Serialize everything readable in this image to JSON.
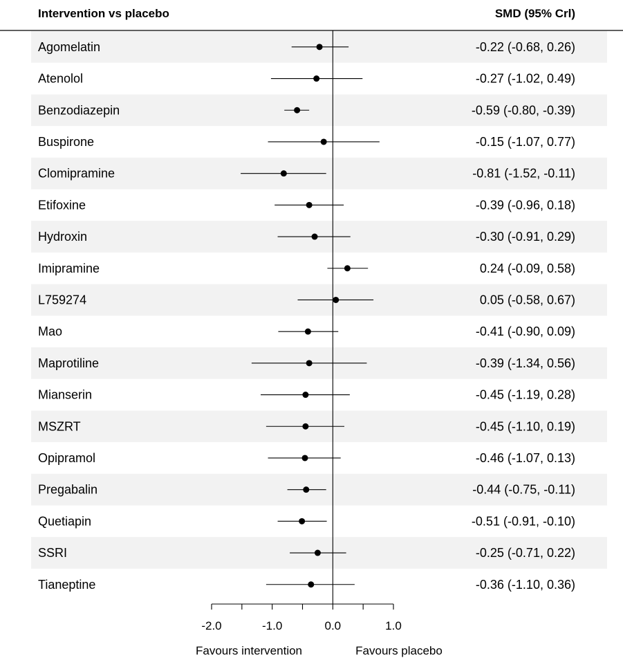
{
  "header": {
    "left": "Intervention vs placebo",
    "right": "SMD (95% Crl)"
  },
  "footer": {
    "favours_left": "Favours intervention",
    "favours_right": "Favours placebo"
  },
  "colors": {
    "stripe": "#f2f2f2",
    "ink": "#000000"
  },
  "chart_data": {
    "type": "forest",
    "xlim": [
      -2.0,
      1.0
    ],
    "xticks": [
      -2.0,
      -1.5,
      -1.0,
      -0.5,
      0.0,
      0.5,
      1.0
    ],
    "xtick_labels": [
      "-2.0",
      "",
      "-1.0",
      "",
      "0.0",
      "",
      "1.0"
    ],
    "reference_line": 0,
    "rows": [
      {
        "label": "Agomelatin",
        "est": -0.22,
        "lo": -0.68,
        "hi": 0.26,
        "text": "-0.22 (-0.68, 0.26)"
      },
      {
        "label": "Atenolol",
        "est": -0.27,
        "lo": -1.02,
        "hi": 0.49,
        "text": "-0.27 (-1.02, 0.49)"
      },
      {
        "label": "Benzodiazepin",
        "est": -0.59,
        "lo": -0.8,
        "hi": -0.39,
        "text": "-0.59 (-0.80, -0.39)"
      },
      {
        "label": "Buspirone",
        "est": -0.15,
        "lo": -1.07,
        "hi": 0.77,
        "text": "-0.15 (-1.07, 0.77)"
      },
      {
        "label": "Clomipramine",
        "est": -0.81,
        "lo": -1.52,
        "hi": -0.11,
        "text": "-0.81 (-1.52, -0.11)"
      },
      {
        "label": "Etifoxine",
        "est": -0.39,
        "lo": -0.96,
        "hi": 0.18,
        "text": "-0.39 (-0.96, 0.18)"
      },
      {
        "label": "Hydroxin",
        "est": -0.3,
        "lo": -0.91,
        "hi": 0.29,
        "text": "-0.30 (-0.91, 0.29)"
      },
      {
        "label": "Imipramine",
        "est": 0.24,
        "lo": -0.09,
        "hi": 0.58,
        "text": "0.24 (-0.09, 0.58)"
      },
      {
        "label": "L759274",
        "est": 0.05,
        "lo": -0.58,
        "hi": 0.67,
        "text": "0.05 (-0.58, 0.67)"
      },
      {
        "label": "Mao",
        "est": -0.41,
        "lo": -0.9,
        "hi": 0.09,
        "text": "-0.41 (-0.90, 0.09)"
      },
      {
        "label": "Maprotiline",
        "est": -0.39,
        "lo": -1.34,
        "hi": 0.56,
        "text": "-0.39 (-1.34, 0.56)"
      },
      {
        "label": "Mianserin",
        "est": -0.45,
        "lo": -1.19,
        "hi": 0.28,
        "text": "-0.45 (-1.19, 0.28)"
      },
      {
        "label": "MSZRT",
        "est": -0.45,
        "lo": -1.1,
        "hi": 0.19,
        "text": "-0.45 (-1.10, 0.19)"
      },
      {
        "label": "Opipramol",
        "est": -0.46,
        "lo": -1.07,
        "hi": 0.13,
        "text": "-0.46 (-1.07, 0.13)"
      },
      {
        "label": "Pregabalin",
        "est": -0.44,
        "lo": -0.75,
        "hi": -0.11,
        "text": "-0.44 (-0.75, -0.11)"
      },
      {
        "label": "Quetiapin",
        "est": -0.51,
        "lo": -0.91,
        "hi": -0.1,
        "text": "-0.51 (-0.91, -0.10)"
      },
      {
        "label": "SSRI",
        "est": -0.25,
        "lo": -0.71,
        "hi": 0.22,
        "text": "-0.25 (-0.71, 0.22)"
      },
      {
        "label": "Tianeptine",
        "est": -0.36,
        "lo": -1.1,
        "hi": 0.36,
        "text": "-0.36 (-1.10, 0.36)"
      }
    ]
  }
}
